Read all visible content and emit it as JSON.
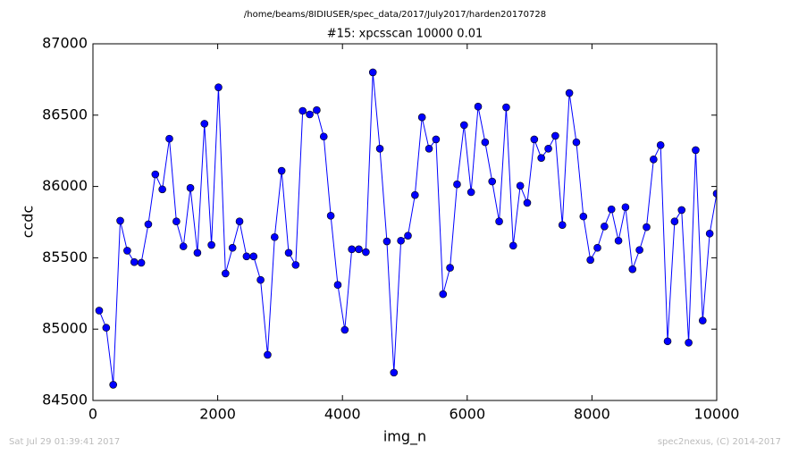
{
  "chart_data": {
    "type": "line",
    "suptitle": "/home/beams/8IDIUSER/spec_data/2017/July2017/harden20170728",
    "title": "#15: xpcsscan 10000 0.01",
    "xlabel": "img_n",
    "ylabel": "ccdc",
    "footer_left": "Sat Jul 29 01:39:41 2017",
    "footer_right": "spec2nexus, (C) 2014-2017",
    "color": "#0000ff",
    "markers": true,
    "grid": false,
    "xlim": [
      0,
      10000
    ],
    "xticks": [
      0,
      2000,
      4000,
      6000,
      8000,
      10000
    ],
    "ylim": [
      84500,
      87000
    ],
    "yticks": [
      84500,
      85000,
      85500,
      86000,
      86500,
      87000
    ],
    "x": [
      100,
      212.5,
      325,
      437.5,
      550,
      662.5,
      775,
      887.5,
      1000,
      1112.5,
      1225,
      1337.5,
      1450,
      1562.5,
      1675,
      1787.5,
      1900,
      2012.5,
      2125,
      2237.5,
      2350,
      2462.5,
      2575,
      2687.5,
      2800,
      2912.5,
      3025,
      3137.5,
      3250,
      3362.5,
      3475,
      3587.5,
      3700,
      3812.5,
      3925,
      4037.5,
      4150,
      4262.5,
      4375,
      4487.5,
      4600,
      4712.5,
      4825,
      4937.5,
      5050,
      5162.5,
      5275,
      5387.5,
      5500,
      5612.5,
      5725,
      5837.5,
      5950,
      6062.5,
      6175,
      6287.5,
      6400,
      6512.5,
      6625,
      6737.5,
      6850,
      6962.5,
      7075,
      7187.5,
      7300,
      7412.5,
      7525,
      7637.5,
      7750,
      7862.5,
      7975,
      8087.5,
      8200,
      8312.5,
      8425,
      8537.5,
      8650,
      8762.5,
      8875,
      8987.5,
      9100,
      9212.5,
      9325,
      9437.5,
      9550,
      9662.5,
      9775,
      9887.5,
      10000
    ],
    "values": [
      85130,
      85010,
      84610,
      85760,
      85550,
      85470,
      85465,
      85735,
      86085,
      85980,
      86335,
      85755,
      85580,
      85990,
      85535,
      86440,
      85590,
      86695,
      85390,
      85570,
      85755,
      85510,
      85510,
      85345,
      84820,
      85645,
      86110,
      85535,
      85450,
      86530,
      86505,
      86535,
      86350,
      85795,
      85310,
      84995,
      85560,
      85560,
      85540,
      86800,
      86265,
      85615,
      84695,
      85620,
      85655,
      85940,
      86485,
      86265,
      86330,
      85245,
      85430,
      86015,
      86430,
      85960,
      86560,
      86310,
      86035,
      85755,
      86555,
      85585,
      86005,
      85885,
      86330,
      86200,
      86265,
      86355,
      85730,
      86655,
      86310,
      85790,
      85485,
      85570,
      85720,
      85840,
      85620,
      85855,
      85420,
      85555,
      85715,
      86190,
      86290,
      84915,
      85755,
      85835,
      84905,
      86255,
      85060,
      85670,
      85950
    ]
  }
}
